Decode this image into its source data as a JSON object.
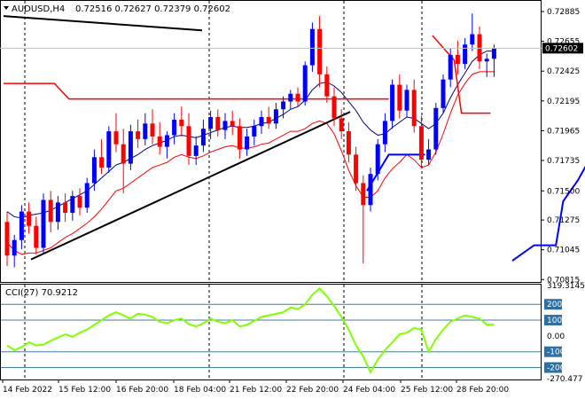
{
  "chart_data": {
    "type": "candlestick",
    "header": {
      "symbol_label": "AUDUSD,H4",
      "ohlc_label": "0.72516 0.72627 0.72379 0.72602"
    },
    "price_axis": {
      "ylim": [
        0.7081,
        0.7294
      ],
      "ticks": [
        "0.72885",
        "0.72655",
        "0.72425",
        "0.72195",
        "0.71965",
        "0.71735",
        "0.71500",
        "0.71275",
        "0.71045",
        "0.70815"
      ],
      "tick_values": [
        0.72885,
        0.72655,
        0.72425,
        0.72195,
        0.71965,
        0.71735,
        0.715,
        0.71275,
        0.71045,
        0.70815
      ],
      "current_price_label": "0.72602",
      "current_price": 0.72602
    },
    "time_axis": {
      "labels": [
        "14 Feb 2022",
        "15 Feb 12:00",
        "16 Feb 20:00",
        "18 Feb 04:00",
        "21 Feb 12:00",
        "22 Feb 20:00",
        "24 Feb 04:00",
        "25 Feb 12:00",
        "28 Feb 20:00"
      ]
    },
    "colors": {
      "up": "#0000ff",
      "down": "#ff0000",
      "bollinger_mid": "#000080",
      "bollinger_low": "#ff0000",
      "trend_line": "#000000",
      "cci": "#7fff00",
      "red_stop": "#ff0000",
      "blue_stop": "#0000ff"
    },
    "candles": [
      [
        0.7126,
        0.7134,
        0.7092,
        0.71
      ],
      [
        0.71,
        0.7116,
        0.7091,
        0.7112
      ],
      [
        0.7112,
        0.7139,
        0.7105,
        0.7134
      ],
      [
        0.7134,
        0.7141,
        0.7117,
        0.7123
      ],
      [
        0.7123,
        0.713,
        0.7101,
        0.7106
      ],
      [
        0.7106,
        0.7148,
        0.7102,
        0.7143
      ],
      [
        0.7143,
        0.715,
        0.7118,
        0.7126
      ],
      [
        0.7126,
        0.7146,
        0.712,
        0.7141
      ],
      [
        0.7141,
        0.7148,
        0.7126,
        0.7133
      ],
      [
        0.7133,
        0.715,
        0.7127,
        0.7146
      ],
      [
        0.7146,
        0.7152,
        0.7131,
        0.7137
      ],
      [
        0.7137,
        0.716,
        0.7133,
        0.7156
      ],
      [
        0.7156,
        0.7182,
        0.715,
        0.7176
      ],
      [
        0.7176,
        0.719,
        0.7163,
        0.7168
      ],
      [
        0.7168,
        0.72,
        0.7164,
        0.7196
      ],
      [
        0.7196,
        0.721,
        0.718,
        0.7186
      ],
      [
        0.7186,
        0.7198,
        0.7148,
        0.7171
      ],
      [
        0.7171,
        0.7201,
        0.7166,
        0.7196
      ],
      [
        0.7196,
        0.7205,
        0.7183,
        0.719
      ],
      [
        0.719,
        0.721,
        0.7185,
        0.7202
      ],
      [
        0.7202,
        0.7213,
        0.7186,
        0.7192
      ],
      [
        0.7192,
        0.7203,
        0.7178,
        0.7184
      ],
      [
        0.7184,
        0.7196,
        0.7175,
        0.7193
      ],
      [
        0.7193,
        0.721,
        0.7186,
        0.7205
      ],
      [
        0.7205,
        0.7215,
        0.7192,
        0.72
      ],
      [
        0.72,
        0.721,
        0.717,
        0.7177
      ],
      [
        0.7177,
        0.7192,
        0.717,
        0.7185
      ],
      [
        0.7185,
        0.7205,
        0.718,
        0.7198
      ],
      [
        0.7198,
        0.7212,
        0.719,
        0.7207
      ],
      [
        0.7207,
        0.7213,
        0.7192,
        0.7197
      ],
      [
        0.7197,
        0.721,
        0.719,
        0.7204
      ],
      [
        0.7204,
        0.7212,
        0.7193,
        0.72
      ],
      [
        0.72,
        0.7206,
        0.7175,
        0.7182
      ],
      [
        0.7182,
        0.7198,
        0.7177,
        0.7192
      ],
      [
        0.7192,
        0.7205,
        0.7185,
        0.72
      ],
      [
        0.72,
        0.7212,
        0.7194,
        0.7207
      ],
      [
        0.7207,
        0.7215,
        0.7198,
        0.7202
      ],
      [
        0.7202,
        0.7218,
        0.7198,
        0.7213
      ],
      [
        0.7213,
        0.7223,
        0.7206,
        0.7219
      ],
      [
        0.7219,
        0.7228,
        0.7213,
        0.7225
      ],
      [
        0.7225,
        0.723,
        0.7215,
        0.7219
      ],
      [
        0.7219,
        0.725,
        0.7216,
        0.7247
      ],
      [
        0.7247,
        0.728,
        0.7242,
        0.7275
      ],
      [
        0.7275,
        0.7285,
        0.723,
        0.724
      ],
      [
        0.724,
        0.7246,
        0.7218,
        0.7223
      ],
      [
        0.7223,
        0.723,
        0.72,
        0.7206
      ],
      [
        0.7206,
        0.7213,
        0.719,
        0.7196
      ],
      [
        0.7196,
        0.7203,
        0.7172,
        0.7178
      ],
      [
        0.7178,
        0.7184,
        0.715,
        0.7156
      ],
      [
        0.7156,
        0.7162,
        0.7094,
        0.7139
      ],
      [
        0.7139,
        0.7168,
        0.7134,
        0.7163
      ],
      [
        0.7163,
        0.719,
        0.7158,
        0.7186
      ],
      [
        0.7186,
        0.721,
        0.718,
        0.7204
      ],
      [
        0.7204,
        0.7236,
        0.7198,
        0.7232
      ],
      [
        0.7232,
        0.724,
        0.7206,
        0.7212
      ],
      [
        0.7212,
        0.7232,
        0.7207,
        0.7228
      ],
      [
        0.7228,
        0.7236,
        0.7195,
        0.72
      ],
      [
        0.72,
        0.7208,
        0.7168,
        0.7174
      ],
      [
        0.7174,
        0.719,
        0.717,
        0.7182
      ],
      [
        0.7182,
        0.7218,
        0.7178,
        0.7214
      ],
      [
        0.7214,
        0.724,
        0.721,
        0.7236
      ],
      [
        0.7236,
        0.726,
        0.723,
        0.7255
      ],
      [
        0.7255,
        0.7266,
        0.724,
        0.7248
      ],
      [
        0.7248,
        0.7268,
        0.7244,
        0.7263
      ],
      [
        0.7263,
        0.7287,
        0.7258,
        0.7271
      ],
      [
        0.7271,
        0.7277,
        0.7244,
        0.725
      ],
      [
        0.725,
        0.7256,
        0.7238,
        0.7252
      ],
      [
        0.7252,
        0.7263,
        0.7238,
        0.726
      ]
    ],
    "bollinger_mid": [
      0.7134,
      0.713,
      0.7129,
      0.7131,
      0.7132,
      0.7133,
      0.7135,
      0.7138,
      0.7141,
      0.7144,
      0.7147,
      0.715,
      0.7155,
      0.716,
      0.7165,
      0.717,
      0.7172,
      0.7175,
      0.7178,
      0.7182,
      0.7185,
      0.7187,
      0.7189,
      0.7192,
      0.7193,
      0.7192,
      0.7191,
      0.7193,
      0.7195,
      0.7197,
      0.7199,
      0.72,
      0.7199,
      0.7199,
      0.72,
      0.7202,
      0.7203,
      0.7206,
      0.7209,
      0.7213,
      0.7215,
      0.722,
      0.7228,
      0.7233,
      0.7234,
      0.7231,
      0.7226,
      0.7219,
      0.7212,
      0.7203,
      0.7197,
      0.7193,
      0.7194,
      0.7199,
      0.7203,
      0.7207,
      0.7206,
      0.7202,
      0.7198,
      0.7202,
      0.721,
      0.7222,
      0.7232,
      0.7241,
      0.725,
      0.7255,
      0.7258,
      0.7258
    ],
    "bollinger_low": [
      0.711,
      0.7104,
      0.7101,
      0.7102,
      0.7102,
      0.7104,
      0.7106,
      0.711,
      0.7114,
      0.7117,
      0.7121,
      0.7125,
      0.713,
      0.7136,
      0.7143,
      0.715,
      0.7152,
      0.7156,
      0.716,
      0.7164,
      0.7168,
      0.717,
      0.7172,
      0.7176,
      0.7178,
      0.7176,
      0.7175,
      0.7177,
      0.718,
      0.7182,
      0.7184,
      0.7185,
      0.7183,
      0.7183,
      0.7184,
      0.7186,
      0.7187,
      0.719,
      0.7193,
      0.7196,
      0.7196,
      0.7198,
      0.7202,
      0.7204,
      0.7202,
      0.7194,
      0.7181,
      0.7166,
      0.7154,
      0.7145,
      0.7145,
      0.715,
      0.716,
      0.7167,
      0.7172,
      0.7178,
      0.7174,
      0.7168,
      0.717,
      0.718,
      0.7194,
      0.721,
      0.7224,
      0.7233,
      0.724,
      0.7242,
      0.7242,
      0.7242
    ],
    "trend_line_top": [
      [
        0,
        0.7285
      ],
      [
        40,
        0.7274
      ]
    ],
    "trend_line_support": [
      [
        5,
        0.7097
      ],
      [
        55,
        0.7211
      ]
    ],
    "red_stop_segments": [
      [
        [
          0,
          0.7233
        ],
        [
          7,
          0.7233
        ],
        [
          9,
          0.7221
        ],
        [
          53,
          0.7221
        ]
      ],
      [
        [
          59,
          0.727
        ],
        [
          62,
          0.7251
        ],
        [
          63,
          0.721
        ],
        [
          67,
          0.721
        ]
      ]
    ],
    "blue_stop_segments": [
      [
        [
          50,
          0.715
        ],
        [
          53,
          0.7178
        ],
        [
          58,
          0.7178
        ]
      ],
      [
        [
          70,
          0.7096
        ],
        [
          73,
          0.7108
        ],
        [
          75,
          0.7108
        ],
        [
          76,
          0.7108
        ],
        [
          77,
          0.7142
        ],
        [
          79,
          0.7158
        ],
        [
          81,
          0.7178
        ],
        [
          84,
          0.7178
        ]
      ]
    ],
    "cci": {
      "label": "CCI(27) 70.9212",
      "value": 70.9212,
      "ylim": [
        -270,
        319
      ],
      "ticks": [
        "319.3145",
        "200",
        "100",
        "0.00",
        "-100",
        "-200",
        "-270.477"
      ],
      "tick_values": [
        319.3145,
        200,
        100,
        0,
        -100,
        -200,
        -270.477
      ],
      "highlight_ticks": [
        "200",
        "100",
        "-100",
        "-200"
      ],
      "values": [
        -60,
        -90,
        -70,
        -40,
        -60,
        -55,
        -30,
        -10,
        10,
        -5,
        20,
        40,
        70,
        100,
        130,
        150,
        130,
        110,
        140,
        135,
        120,
        90,
        80,
        100,
        110,
        75,
        60,
        80,
        110,
        90,
        80,
        100,
        60,
        70,
        95,
        120,
        130,
        140,
        150,
        180,
        170,
        200,
        260,
        300,
        250,
        190,
        120,
        40,
        -60,
        -130,
        -230,
        -150,
        -90,
        -40,
        10,
        20,
        50,
        40,
        -100,
        -20,
        40,
        90,
        110,
        130,
        120,
        110,
        70,
        71
      ]
    }
  }
}
